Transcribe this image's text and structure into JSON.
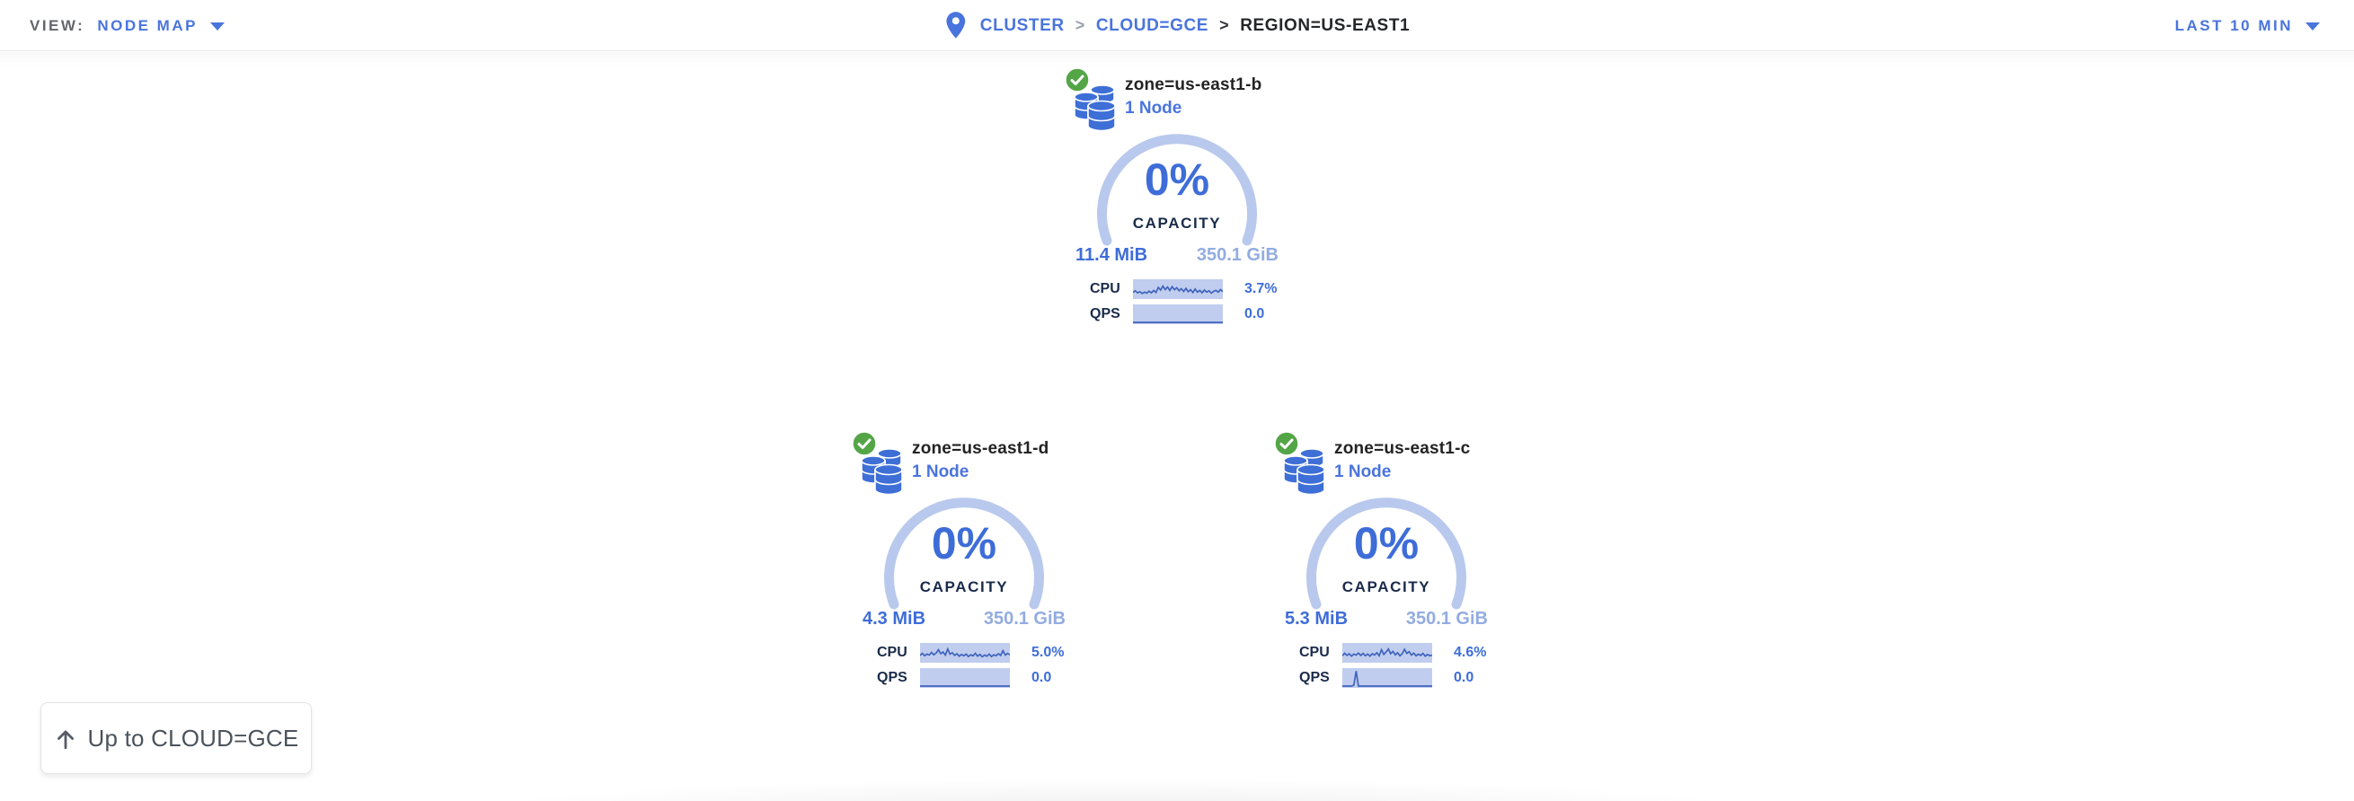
{
  "header": {
    "view_label": "VIEW:",
    "view_value": "NODE MAP",
    "time_range": "LAST 10 MIN",
    "breadcrumb": {
      "separator": ">",
      "items": [
        {
          "label": "CLUSTER"
        },
        {
          "label": "CLOUD=GCE"
        },
        {
          "label": "REGION=US-EAST1"
        }
      ]
    }
  },
  "zones": [
    {
      "title": "zone=us-east1-b",
      "subtitle": "1 Node",
      "status": "healthy",
      "capacity_pct": "0%",
      "capacity_label": "CAPACITY",
      "used": "11.4 MiB",
      "total": "350.1 GiB",
      "cpu_label": "CPU",
      "cpu_value": "3.7%",
      "qps_label": "QPS",
      "qps_value": "0.0",
      "cpu_spark": [
        0.72,
        0.62,
        0.74,
        0.68,
        0.78,
        0.7,
        0.76,
        0.64,
        0.74,
        0.6,
        0.72,
        0.42,
        0.58,
        0.35,
        0.55,
        0.4,
        0.6,
        0.38,
        0.56,
        0.44,
        0.62,
        0.5,
        0.66,
        0.48,
        0.68,
        0.56,
        0.72,
        0.52,
        0.7,
        0.6,
        0.74,
        0.58,
        0.7,
        0.62,
        0.76,
        0.66,
        0.6,
        0.7,
        0.55,
        0.68
      ],
      "qps_spark": [
        1,
        1,
        1,
        1,
        1,
        1,
        1,
        1,
        1,
        1,
        1,
        1,
        1,
        1,
        1,
        1,
        1,
        1,
        1,
        1,
        1,
        1,
        1,
        1,
        1,
        1,
        1,
        1,
        1,
        1,
        1,
        1,
        1,
        1,
        1,
        1,
        1,
        1,
        1,
        1
      ]
    },
    {
      "title": "zone=us-east1-d",
      "subtitle": "1 Node",
      "status": "healthy",
      "capacity_pct": "0%",
      "capacity_label": "CAPACITY",
      "used": "4.3 MiB",
      "total": "350.1 GiB",
      "cpu_label": "CPU",
      "cpu_value": "5.0%",
      "qps_label": "QPS",
      "qps_value": "0.0",
      "cpu_spark": [
        0.68,
        0.56,
        0.7,
        0.6,
        0.66,
        0.5,
        0.64,
        0.54,
        0.35,
        0.58,
        0.48,
        0.66,
        0.3,
        0.6,
        0.52,
        0.68,
        0.58,
        0.72,
        0.62,
        0.7,
        0.6,
        0.74,
        0.64,
        0.7,
        0.55,
        0.72,
        0.62,
        0.76,
        0.66,
        0.72,
        0.6,
        0.74,
        0.64,
        0.7,
        0.58,
        0.68,
        0.4,
        0.66,
        0.56,
        0.64
      ],
      "qps_spark": [
        1,
        1,
        1,
        1,
        1,
        1,
        1,
        1,
        1,
        1,
        1,
        1,
        1,
        1,
        1,
        1,
        1,
        1,
        1,
        1,
        1,
        1,
        1,
        1,
        1,
        1,
        1,
        1,
        1,
        1,
        1,
        1,
        1,
        1,
        1,
        1,
        1,
        1,
        1,
        1
      ]
    },
    {
      "title": "zone=us-east1-c",
      "subtitle": "1 Node",
      "status": "healthy",
      "capacity_pct": "0%",
      "capacity_label": "CAPACITY",
      "used": "5.3 MiB",
      "total": "350.1 GiB",
      "cpu_label": "CPU",
      "cpu_value": "4.6%",
      "qps_label": "QPS",
      "qps_value": "0.0",
      "cpu_spark": [
        0.7,
        0.55,
        0.68,
        0.58,
        0.72,
        0.6,
        0.66,
        0.54,
        0.68,
        0.56,
        0.7,
        0.6,
        0.72,
        0.58,
        0.66,
        0.52,
        0.7,
        0.35,
        0.62,
        0.48,
        0.3,
        0.58,
        0.44,
        0.64,
        0.52,
        0.7,
        0.58,
        0.32,
        0.56,
        0.46,
        0.66,
        0.54,
        0.7,
        0.6,
        0.68,
        0.56,
        0.72,
        0.62,
        0.7,
        0.66
      ],
      "qps_spark": [
        1,
        1,
        1,
        1,
        1,
        0.95,
        0.12,
        1,
        1,
        1,
        1,
        1,
        1,
        1,
        1,
        1,
        1,
        1,
        1,
        1,
        1,
        1,
        1,
        1,
        1,
        1,
        1,
        1,
        1,
        1,
        1,
        1,
        1,
        1,
        1,
        1,
        1,
        1,
        1,
        1
      ]
    }
  ],
  "up_button": {
    "label": "Up to CLOUD=GCE"
  },
  "colors": {
    "accent_blue": "#3e6dd8",
    "link_blue": "#4a74dd",
    "light_blue_text": "#93ace1",
    "gauge_ring": "#b9c9ed",
    "spark_bg": "#c0cdee",
    "spark_line": "#3f63bd",
    "healthy_green": "#54a546",
    "dark_navy": "#1a2b4a"
  }
}
